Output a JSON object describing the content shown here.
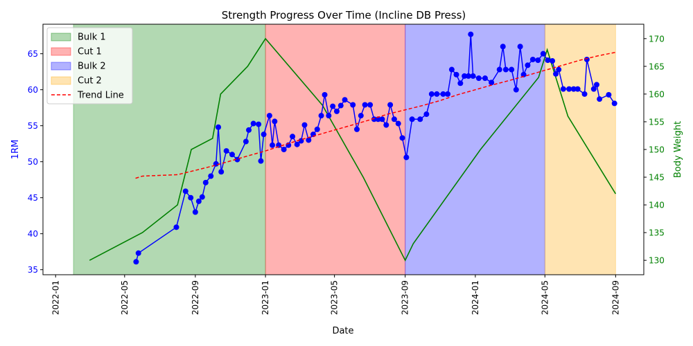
{
  "chart_data": {
    "type": "line",
    "title": "Strength Progress Over Time (Incline DB Press)",
    "xlabel": "Date",
    "ylabel_left": "1RM",
    "ylabel_right": "Body Weight",
    "x_range": [
      "2021-12-10",
      "2024-10-20"
    ],
    "y_left_range": [
      34.3,
      69.1
    ],
    "y_right_range": [
      127.4,
      172.6
    ],
    "x_ticks": [
      "2022-01",
      "2022-05",
      "2022-09",
      "2023-01",
      "2023-05",
      "2023-09",
      "2024-01",
      "2024-05",
      "2024-09"
    ],
    "y_left_ticks": [
      "35",
      "40",
      "45",
      "50",
      "55",
      "60",
      "65"
    ],
    "y_right_ticks": [
      "130",
      "135",
      "140",
      "145",
      "150",
      "155",
      "160",
      "165",
      "170"
    ],
    "colors": {
      "one_rm": "#0000ff",
      "body_weight": "#008000",
      "trend": "#ff0000",
      "bulk1": "#008000",
      "cut1": "#ff0000",
      "bulk2": "#0000ff",
      "cut2": "#ffa500"
    },
    "phases": [
      {
        "name": "Bulk 1",
        "start": "2022-02-01",
        "end": "2023-01-01",
        "color": "#008000"
      },
      {
        "name": "Cut 1",
        "start": "2023-01-01",
        "end": "2023-09-01",
        "color": "#ff0000"
      },
      {
        "name": "Bulk 2",
        "start": "2023-09-01",
        "end": "2024-05-01",
        "color": "#0000ff"
      },
      {
        "name": "Cut 2",
        "start": "2024-05-01",
        "end": "2024-09-01",
        "color": "#ffa500"
      }
    ],
    "legend": {
      "position": "top-left",
      "entries": [
        {
          "label": "Bulk 1",
          "kind": "patch",
          "color": "#008000"
        },
        {
          "label": "Cut 1",
          "kind": "patch",
          "color": "#ff0000"
        },
        {
          "label": "Bulk 2",
          "kind": "patch",
          "color": "#0000ff"
        },
        {
          "label": "Cut 2",
          "kind": "patch",
          "color": "#ffa500"
        },
        {
          "label": "Trend Line",
          "kind": "dashed",
          "color": "#ff0000"
        }
      ]
    },
    "series": [
      {
        "key": "one_rm",
        "axis": "left",
        "style": "line-markers",
        "points": [
          [
            "2022-05-21",
            36.1
          ],
          [
            "2022-05-25",
            37.3
          ],
          [
            "2022-07-30",
            40.9
          ],
          [
            "2022-08-15",
            45.9
          ],
          [
            "2022-08-24",
            45.0
          ],
          [
            "2022-09-01",
            43.0
          ],
          [
            "2022-09-07",
            44.5
          ],
          [
            "2022-09-13",
            45.1
          ],
          [
            "2022-09-19",
            47.1
          ],
          [
            "2022-09-28",
            48.0
          ],
          [
            "2022-10-07",
            49.7
          ],
          [
            "2022-10-11",
            54.8
          ],
          [
            "2022-10-16",
            48.6
          ],
          [
            "2022-10-25",
            51.5
          ],
          [
            "2022-11-04",
            51.0
          ],
          [
            "2022-11-13",
            50.3
          ],
          [
            "2022-11-28",
            52.8
          ],
          [
            "2022-12-03",
            54.4
          ],
          [
            "2022-12-11",
            55.3
          ],
          [
            "2022-12-20",
            55.2
          ],
          [
            "2022-12-24",
            50.1
          ],
          [
            "2022-12-29",
            53.8
          ],
          [
            "2023-01-08",
            56.4
          ],
          [
            "2023-01-13",
            52.3
          ],
          [
            "2023-01-17",
            55.6
          ],
          [
            "2023-01-24",
            52.3
          ],
          [
            "2023-02-02",
            51.7
          ],
          [
            "2023-02-10",
            52.3
          ],
          [
            "2023-02-17",
            53.5
          ],
          [
            "2023-02-25",
            52.4
          ],
          [
            "2023-03-04",
            52.9
          ],
          [
            "2023-03-10",
            55.1
          ],
          [
            "2023-03-17",
            53.0
          ],
          [
            "2023-03-25",
            53.8
          ],
          [
            "2023-04-01",
            54.5
          ],
          [
            "2023-04-08",
            56.4
          ],
          [
            "2023-04-14",
            59.3
          ],
          [
            "2023-04-21",
            56.4
          ],
          [
            "2023-04-28",
            57.7
          ],
          [
            "2023-05-05",
            57.0
          ],
          [
            "2023-05-12",
            57.8
          ],
          [
            "2023-05-19",
            58.6
          ],
          [
            "2023-06-02",
            57.9
          ],
          [
            "2023-06-09",
            54.5
          ],
          [
            "2023-06-16",
            56.4
          ],
          [
            "2023-06-23",
            57.9
          ],
          [
            "2023-07-02",
            57.9
          ],
          [
            "2023-07-09",
            55.9
          ],
          [
            "2023-07-16",
            55.9
          ],
          [
            "2023-07-23",
            55.9
          ],
          [
            "2023-07-30",
            55.1
          ],
          [
            "2023-08-06",
            57.9
          ],
          [
            "2023-08-13",
            55.9
          ],
          [
            "2023-08-20",
            55.3
          ],
          [
            "2023-08-27",
            53.3
          ],
          [
            "2023-09-03",
            50.6
          ],
          [
            "2023-09-10",
            null
          ]
        ],
        "points2": [
          [
            "2023-09-13",
            55.9
          ],
          [
            "2023-09-27",
            55.9
          ],
          [
            "2023-10-08",
            56.6
          ],
          [
            "2023-10-17",
            59.4
          ],
          [
            "2023-10-26",
            59.4
          ],
          [
            "2023-11-06",
            59.4
          ],
          [
            "2023-11-14",
            59.4
          ],
          [
            "2023-11-21",
            62.8
          ],
          [
            "2023-11-29",
            62.1
          ],
          [
            "2023-12-06",
            60.9
          ],
          [
            "2023-12-13",
            61.9
          ],
          [
            "2023-12-20",
            61.9
          ],
          [
            "2023-12-24",
            67.7
          ],
          [
            "2023-12-28",
            61.9
          ],
          [
            "2024-01-07",
            61.6
          ],
          [
            "2024-01-18",
            61.6
          ],
          [
            "2024-01-29",
            61.0
          ],
          [
            "2024-02-12",
            62.8
          ],
          [
            "2024-02-18",
            66.0
          ],
          [
            "2024-02-23",
            62.8
          ],
          [
            "2024-03-04",
            62.8
          ],
          [
            "2024-03-12",
            60.0
          ],
          [
            "2024-03-19",
            66.0
          ],
          [
            "2024-03-25",
            62.1
          ],
          [
            "2024-04-01",
            63.4
          ],
          [
            "2024-04-10",
            64.2
          ],
          [
            "2024-04-19",
            64.1
          ],
          [
            "2024-04-28",
            65.0
          ],
          [
            "2024-05-06",
            64.1
          ],
          [
            "2024-05-14",
            64.0
          ],
          [
            "2024-05-20",
            62.2
          ],
          [
            "2024-05-25",
            62.8
          ],
          [
            "2024-06-02",
            60.1
          ],
          [
            "2024-06-12",
            60.1
          ],
          [
            "2024-06-20",
            60.1
          ],
          [
            "2024-06-27",
            60.1
          ],
          [
            "2024-07-09",
            59.4
          ],
          [
            "2024-07-13",
            64.2
          ],
          [
            "2024-07-25",
            60.1
          ],
          [
            "2024-07-30",
            60.7
          ],
          [
            "2024-08-04",
            58.7
          ],
          [
            "2024-08-20",
            59.3
          ],
          [
            "2024-08-30",
            58.1
          ]
        ]
      },
      {
        "key": "body_weight",
        "axis": "right",
        "style": "line",
        "points": [
          [
            "2022-03-01",
            130
          ],
          [
            "2022-06-01",
            135
          ],
          [
            "2022-08-01",
            140
          ],
          [
            "2022-08-25",
            150
          ],
          [
            "2022-10-01",
            152
          ],
          [
            "2022-10-15",
            160
          ],
          [
            "2022-12-01",
            165
          ],
          [
            "2023-01-01",
            170
          ],
          [
            "2023-04-10",
            158
          ],
          [
            "2023-06-20",
            145
          ],
          [
            "2023-09-01",
            130
          ],
          [
            "2023-09-15",
            133
          ],
          [
            "2024-01-10",
            150
          ],
          [
            "2024-04-20",
            163
          ],
          [
            "2024-05-05",
            168
          ],
          [
            "2024-06-10",
            156
          ],
          [
            "2024-09-01",
            142
          ]
        ]
      },
      {
        "key": "trend",
        "axis": "left",
        "style": "dashed",
        "points": [
          [
            "2022-05-20",
            47.7
          ],
          [
            "2022-06-01",
            48.0
          ],
          [
            "2022-08-01",
            48.2
          ],
          [
            "2022-09-01",
            48.8
          ],
          [
            "2022-10-01",
            49.4
          ],
          [
            "2022-11-01",
            50.1
          ],
          [
            "2022-12-01",
            50.8
          ],
          [
            "2023-01-01",
            51.5
          ],
          [
            "2023-02-01",
            52.3
          ],
          [
            "2023-03-01",
            53.0
          ],
          [
            "2023-04-01",
            53.7
          ],
          [
            "2023-05-01",
            54.4
          ],
          [
            "2023-06-01",
            55.1
          ],
          [
            "2023-07-01",
            55.8
          ],
          [
            "2023-08-01",
            56.6
          ],
          [
            "2023-09-01",
            57.2
          ],
          [
            "2023-10-01",
            57.8
          ],
          [
            "2023-11-01",
            58.5
          ],
          [
            "2023-12-01",
            59.3
          ],
          [
            "2024-01-01",
            60.0
          ],
          [
            "2024-02-01",
            60.7
          ],
          [
            "2024-03-01",
            61.3
          ],
          [
            "2024-04-01",
            62.0
          ],
          [
            "2024-05-01",
            62.7
          ],
          [
            "2024-06-01",
            63.4
          ],
          [
            "2024-07-01",
            64.1
          ],
          [
            "2024-08-01",
            64.7
          ],
          [
            "2024-09-01",
            65.2
          ]
        ]
      }
    ]
  }
}
